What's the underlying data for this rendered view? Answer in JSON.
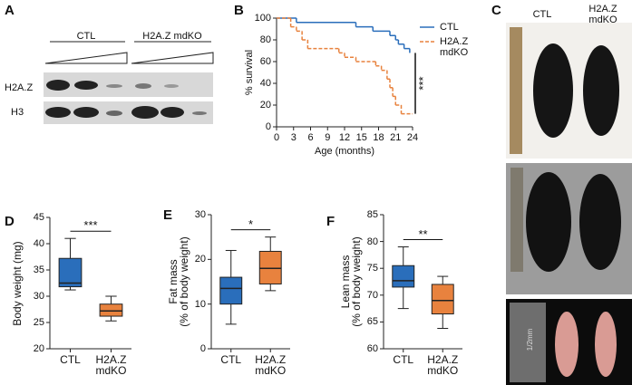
{
  "panel_labels": [
    "A",
    "B",
    "C",
    "D",
    "E",
    "F"
  ],
  "blot": {
    "groups": [
      "CTL",
      "H2A.Z mdKO"
    ],
    "rows": [
      "H2A.Z",
      "H3"
    ]
  },
  "photos": {
    "labels": [
      "CTL",
      "H2A.Z\nmdKO"
    ],
    "ruler": "1/2mm"
  },
  "chart_data": [
    {
      "type": "line",
      "step": true,
      "ylabel": "% survival",
      "xlabel": "Age (months)",
      "xlim": [
        0,
        24
      ],
      "xticks": [
        0,
        3,
        6,
        9,
        12,
        15,
        18,
        21,
        24
      ],
      "ylim": [
        0,
        100
      ],
      "yticks": [
        0,
        20,
        40,
        60,
        80,
        100
      ],
      "annotation": "***",
      "series": [
        {
          "name": "CTL",
          "color": "#2a6ebb",
          "dash": false,
          "x": [
            0,
            3.5,
            14,
            17,
            20,
            21,
            21.5,
            22.5,
            23.5
          ],
          "values": [
            100,
            96,
            92,
            88,
            84,
            80,
            76,
            72,
            68
          ]
        },
        {
          "name": "H2A.Z\nmdKO",
          "color": "#e8823e",
          "dash": true,
          "x": [
            0,
            2.5,
            3.5,
            4.5,
            5.5,
            11,
            12,
            14,
            17.5,
            18.5,
            19.5,
            20,
            20.5,
            21,
            22,
            24
          ],
          "values": [
            100,
            92,
            88,
            80,
            72,
            68,
            64,
            60,
            56,
            52,
            44,
            36,
            28,
            20,
            12,
            12
          ]
        }
      ]
    },
    {
      "type": "box",
      "ylabel": "Body weight (mg)",
      "categories": [
        "CTL",
        "H2A.Z\nmdKO"
      ],
      "colors": [
        "#2a6ebb",
        "#e8823e"
      ],
      "ylim": [
        20,
        45
      ],
      "yticks": [
        20,
        25,
        30,
        35,
        40,
        45
      ],
      "annotation": "***",
      "stats": [
        {
          "min": 31.2,
          "q1": 31.8,
          "median": 32.5,
          "q3": 37.2,
          "max": 41
        },
        {
          "min": 25.3,
          "q1": 26.2,
          "median": 27.2,
          "q3": 28.5,
          "max": 30
        }
      ]
    },
    {
      "type": "box",
      "ylabel": "Fat mass\n(% of body weight)",
      "categories": [
        "CTL",
        "H2A.Z\nmdKO"
      ],
      "colors": [
        "#2a6ebb",
        "#e8823e"
      ],
      "ylim": [
        0,
        30
      ],
      "yticks": [
        0,
        10,
        20,
        30
      ],
      "annotation": "*",
      "stats": [
        {
          "min": 5.5,
          "q1": 10,
          "median": 13.5,
          "q3": 16,
          "max": 22
        },
        {
          "min": 13,
          "q1": 14.5,
          "median": 18,
          "q3": 21.8,
          "max": 25
        }
      ]
    },
    {
      "type": "box",
      "ylabel": "Lean mass\n(% of body weight)",
      "categories": [
        "CTL",
        "H2A.Z\nmdKO"
      ],
      "colors": [
        "#2a6ebb",
        "#e8823e"
      ],
      "ylim": [
        60,
        85
      ],
      "yticks": [
        60,
        65,
        70,
        75,
        80,
        85
      ],
      "annotation": "**",
      "stats": [
        {
          "min": 67.5,
          "q1": 71.5,
          "median": 72.7,
          "q3": 75.5,
          "max": 79
        },
        {
          "min": 63.8,
          "q1": 66.5,
          "median": 69,
          "q3": 72,
          "max": 73.5
        }
      ]
    }
  ]
}
